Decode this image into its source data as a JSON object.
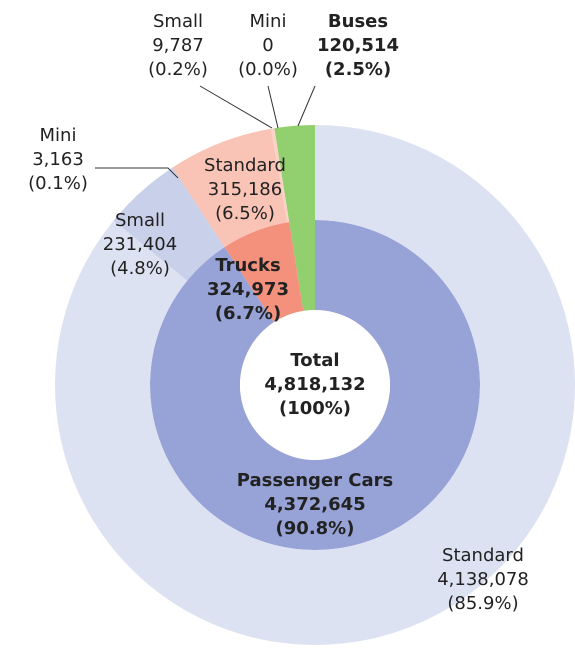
{
  "chart_data": {
    "type": "nested-donut",
    "total": {
      "name": "Total",
      "value": 4818132,
      "value_label": "4,818,132",
      "percent": 100,
      "percent_label": "(100%)"
    },
    "segments": [
      {
        "name": "Buses",
        "value": 120514,
        "value_label": "120,514",
        "percent": 2.5,
        "percent_label": "(2.5%)",
        "color": "#92cf6e",
        "children": []
      },
      {
        "name": "Trucks",
        "value": 324973,
        "value_label": "324,973",
        "percent": 6.7,
        "percent_label": "(6.7%)",
        "color": "#f4917d",
        "children": [
          {
            "name": "Mini",
            "value": 0,
            "value_label": "0",
            "percent": 0.0,
            "percent_label": "(0.0%)",
            "color": "#fbd3c6"
          },
          {
            "name": "Small",
            "value": 9787,
            "value_label": "9,787",
            "percent": 0.2,
            "percent_label": "(0.2%)",
            "color": "#fbd3c6"
          },
          {
            "name": "Standard",
            "value": 315186,
            "value_label": "315,186",
            "percent": 6.5,
            "percent_label": "(6.5%)",
            "color": "#f9c4b5"
          }
        ]
      },
      {
        "name": "Passenger Cars",
        "value": 4372645,
        "value_label": "4,372,645",
        "percent": 90.8,
        "percent_label": "(90.8%)",
        "color": "#97a3d6",
        "children": [
          {
            "name": "Mini",
            "value": 3163,
            "value_label": "3,163",
            "percent": 0.1,
            "percent_label": "(0.1%)",
            "color": "#c4cbe8"
          },
          {
            "name": "Small",
            "value": 231404,
            "value_label": "231,404",
            "percent": 4.8,
            "percent_label": "(4.8%)",
            "color": "#c9d0ea"
          },
          {
            "name": "Standard",
            "value": 4138078,
            "value_label": "4,138,078",
            "percent": 85.9,
            "percent_label": "(85.9%)",
            "color": "#dde2f3"
          }
        ]
      }
    ]
  }
}
